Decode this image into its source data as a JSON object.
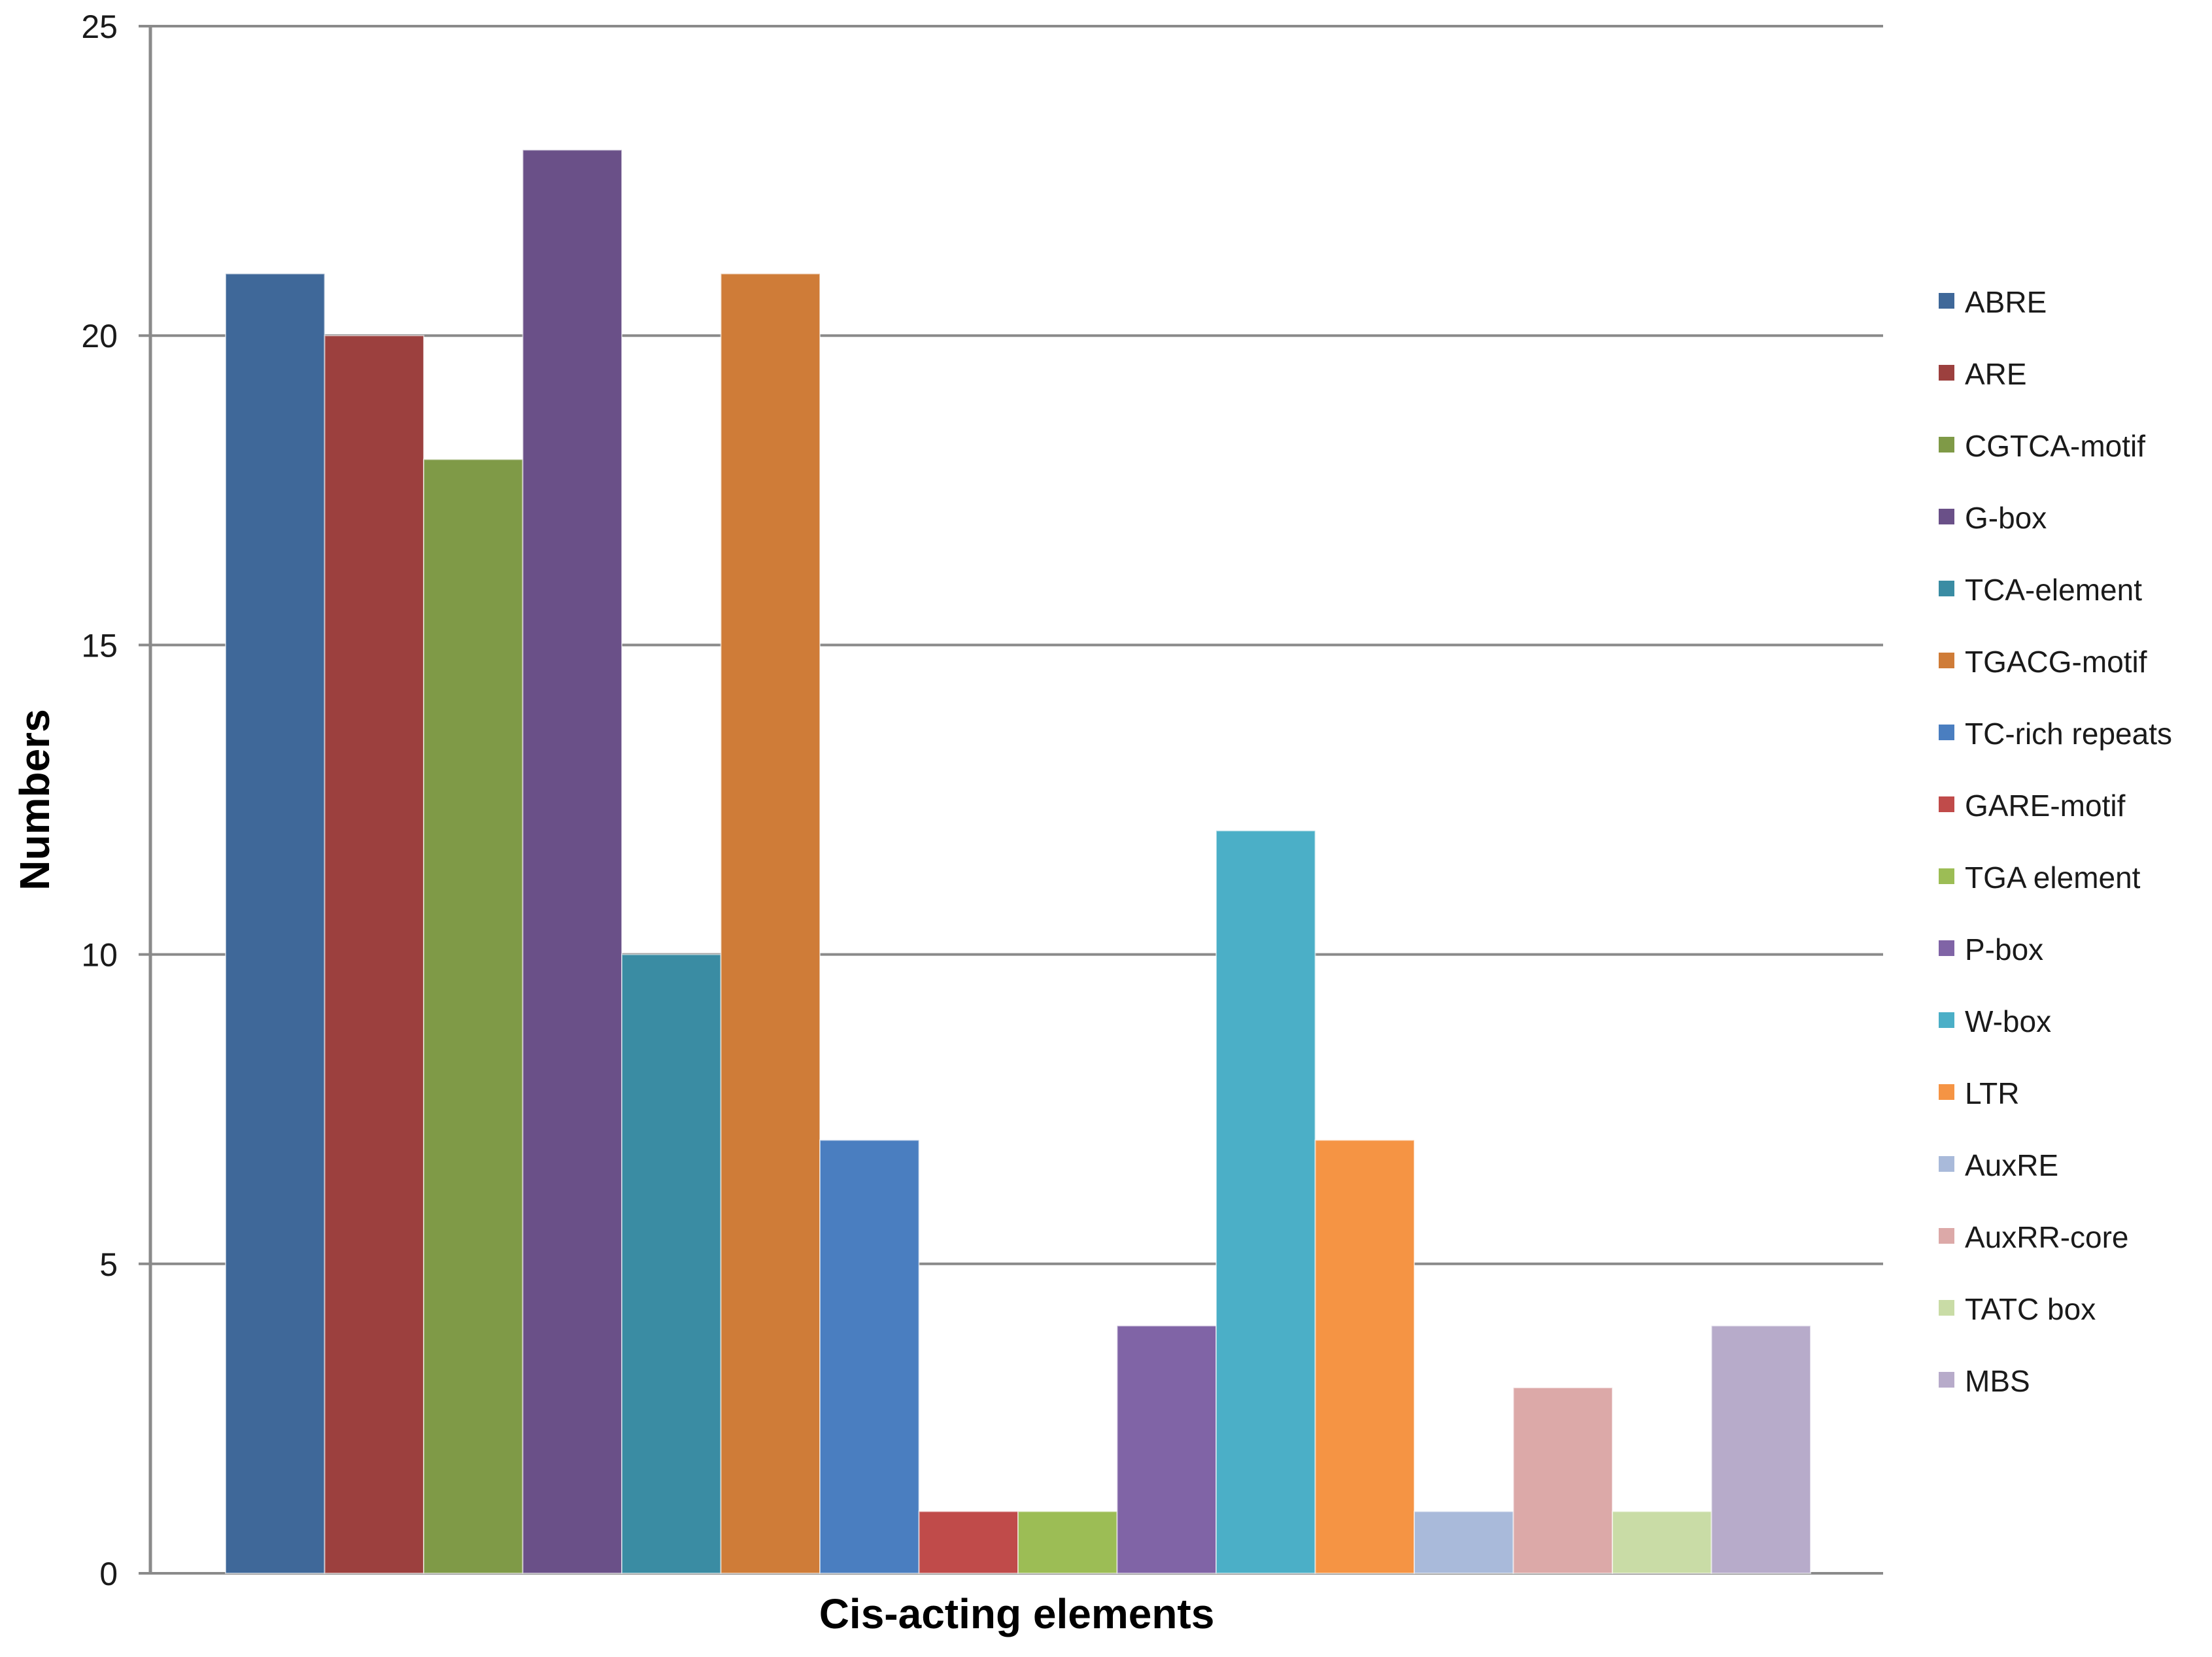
{
  "chart_data": {
    "type": "bar",
    "title": "",
    "xlabel": "Cis-acting elements",
    "ylabel": "Numbers",
    "ylim": [
      0,
      25
    ],
    "yticks": [
      0,
      5,
      10,
      15,
      20,
      25
    ],
    "grid": true,
    "legend_position": "right",
    "series": [
      {
        "name": "ABRE",
        "value": 21,
        "color": "#3F6899"
      },
      {
        "name": "ARE",
        "value": 20,
        "color": "#9C403E"
      },
      {
        "name": "CGTCA-motif",
        "value": 18,
        "color": "#7F9A47"
      },
      {
        "name": "G-box",
        "value": 23,
        "color": "#6A5088"
      },
      {
        "name": "TCA-element",
        "value": 10,
        "color": "#3A8CA3"
      },
      {
        "name": "TGACG-motif",
        "value": 21,
        "color": "#CF7C38"
      },
      {
        "name": "TC-rich repeats",
        "value": 7,
        "color": "#4A7EC0"
      },
      {
        "name": "GARE-motif",
        "value": 1,
        "color": "#C04B4A"
      },
      {
        "name": "TGA element",
        "value": 1,
        "color": "#9CBD55"
      },
      {
        "name": "P-box",
        "value": 4,
        "color": "#8064A6"
      },
      {
        "name": "W-box",
        "value": 12,
        "color": "#4BAFC7"
      },
      {
        "name": "LTR",
        "value": 7,
        "color": "#F59444"
      },
      {
        "name": "AuxRE",
        "value": 1,
        "color": "#A9BADA"
      },
      {
        "name": "AuxRR-core",
        "value": 3,
        "color": "#DCA9A8"
      },
      {
        "name": "TATC box",
        "value": 1,
        "color": "#C9DCA6"
      },
      {
        "name": "MBS",
        "value": 4,
        "color": "#B7ABCA"
      }
    ]
  }
}
